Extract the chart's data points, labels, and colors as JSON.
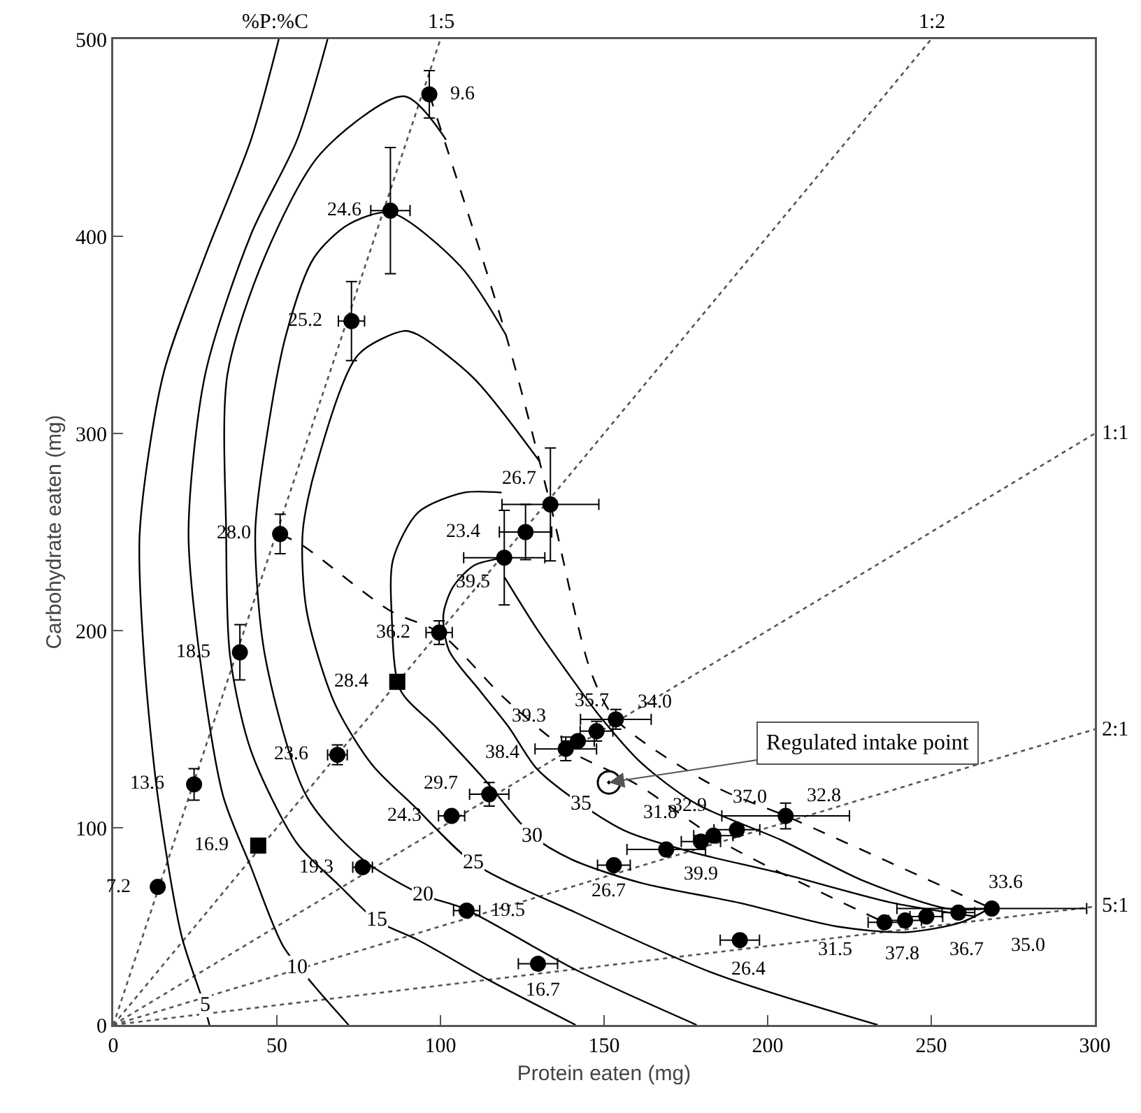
{
  "chart_data": {
    "type": "scatter",
    "xlabel": "Protein eaten (mg)",
    "ylabel": "Carbohydrate eaten (mg)",
    "xlim": [
      0,
      300
    ],
    "xticks": [
      0,
      50,
      100,
      150,
      200,
      250,
      300
    ],
    "ylim": [
      0,
      500
    ],
    "yticks": [
      0,
      100,
      200,
      300,
      400,
      500
    ],
    "annotations": [
      "%P:%C",
      {
        "text": "1:5",
        "x": 100,
        "y": 500
      },
      {
        "text": "1:2",
        "x": 250,
        "y": 500
      },
      {
        "text": "1:1",
        "x": 300,
        "y": 300
      },
      {
        "text": "2:1",
        "x": 300,
        "y": 150
      },
      {
        "text": "5:1",
        "x": 300,
        "y": 60
      },
      {
        "text": "5",
        "x": 28,
        "y": 10
      },
      {
        "text": "10",
        "x": 56,
        "y": 29
      },
      {
        "text": "15",
        "x": 80.4,
        "y": 53
      },
      {
        "text": "20",
        "x": 94.5,
        "y": 66
      },
      {
        "text": "25",
        "x": 110,
        "y": 82
      },
      {
        "text": "30",
        "x": 128,
        "y": 96
      },
      {
        "text": "35",
        "x": 143,
        "y": 112
      },
      {
        "text": "9.6",
        "x": 96.6,
        "y": 472
      },
      {
        "text": "24.6",
        "x": 84.7,
        "y": 413
      },
      {
        "text": "25.2",
        "x": 72.8,
        "y": 357
      },
      {
        "text": "28.0",
        "x": 51,
        "y": 249
      },
      {
        "text": "18.5",
        "x": 38.7,
        "y": 189
      },
      {
        "text": "13.6",
        "x": 24.7,
        "y": 122
      },
      {
        "text": "7.2",
        "x": 13.6,
        "y": 70
      },
      {
        "text": "23.6",
        "x": 68.5,
        "y": 137
      },
      {
        "text": "19.3",
        "x": 76.2,
        "y": 80
      },
      {
        "text": "36.2",
        "x": 99.6,
        "y": 199
      },
      {
        "text": "29.7",
        "x": 114.9,
        "y": 117
      },
      {
        "text": "24.3",
        "x": 103.4,
        "y": 106
      },
      {
        "text": "19.5",
        "x": 108,
        "y": 58
      },
      {
        "text": "16.7",
        "x": 129.8,
        "y": 31
      },
      {
        "text": "26.4",
        "x": 191.5,
        "y": 43
      },
      {
        "text": "26.7",
        "x": 153,
        "y": 81
      },
      {
        "text": "31.8",
        "x": 169,
        "y": 89
      },
      {
        "text": "39.9",
        "x": 179.6,
        "y": 93
      },
      {
        "text": "32.9",
        "x": 183.4,
        "y": 96
      },
      {
        "text": "37.0",
        "x": 190.6,
        "y": 99
      },
      {
        "text": "32.8",
        "x": 205.5,
        "y": 106
      },
      {
        "text": "31.5",
        "x": 235.7,
        "y": 52
      },
      {
        "text": "37.8",
        "x": 242,
        "y": 53
      },
      {
        "text": "36.7",
        "x": 248.5,
        "y": 55
      },
      {
        "text": "35.0",
        "x": 258.3,
        "y": 57
      },
      {
        "text": "33.6",
        "x": 268.5,
        "y": 59
      },
      {
        "text": "34.0",
        "x": 153.6,
        "y": 155
      },
      {
        "text": "35.7",
        "x": 147.7,
        "y": 149
      },
      {
        "text": "39.3",
        "x": 142,
        "y": 144
      },
      {
        "text": "38.4",
        "x": 138.3,
        "y": 140
      },
      {
        "text": "26.7",
        "x": 133.6,
        "y": 264
      },
      {
        "text": "23.4",
        "x": 126,
        "y": 250
      },
      {
        "text": "39.5",
        "x": 119.5,
        "y": 237
      },
      {
        "text": "16.9",
        "x": 44.3,
        "y": 91
      },
      {
        "text": "28.4",
        "x": 86.8,
        "y": 174
      }
    ],
    "series": [
      {
        "type": "line",
        "line_style": "dotted",
        "color": "#555555",
        "x": [
          0,
          100
        ],
        "values": [
          0,
          500
        ]
      },
      {
        "type": "line",
        "line_style": "dotted",
        "color": "#555555",
        "x": [
          0,
          250
        ],
        "values": [
          0,
          500
        ]
      },
      {
        "type": "line",
        "line_style": "dotted",
        "color": "#555555",
        "x": [
          0,
          300
        ],
        "values": [
          0,
          300
        ]
      },
      {
        "type": "line",
        "line_style": "dotted",
        "color": "#555555",
        "x": [
          0,
          300
        ],
        "values": [
          0,
          150
        ]
      },
      {
        "type": "line",
        "line_style": "dotted",
        "color": "#555555",
        "x": [
          0,
          300
        ],
        "values": [
          0,
          60
        ]
      },
      {
        "type": "line",
        "line_style": "solid",
        "color": "#000000",
        "x": [
          50.6,
          42.1,
          28.1,
          15.3,
          8.1,
          9.4,
          13.6,
          20.9,
          27.2,
          29.4
        ],
        "values": [
          500,
          449,
          390,
          330,
          250,
          187,
          116,
          45,
          13,
          0
        ]
      },
      {
        "type": "line",
        "line_style": "solid",
        "color": "#000000",
        "x": [
          65.5,
          56.2,
          42.1,
          28.1,
          23,
          26.4,
          33.6,
          42.1,
          51.9,
          61.3,
          71.9
        ],
        "values": [
          500,
          449,
          401,
          330,
          250,
          187,
          116,
          80,
          40,
          20,
          0
        ]
      },
      {
        "type": "line",
        "line_style": "solid",
        "color": "#000000",
        "x": [
          101.7,
          88.9,
          63.4,
          46.4,
          34.9,
          34.5,
          35.7,
          42.1,
          56.2,
          68.9,
          80.4,
          93.2,
          114.5,
          141.3
        ],
        "values": [
          449,
          471,
          442,
          390,
          330,
          250,
          187,
          139,
          92,
          71,
          53,
          43,
          23,
          0
        ]
      },
      {
        "type": "line",
        "line_style": "solid",
        "color": "#000000",
        "x": [
          120,
          106,
          84.7,
          71.9,
          61.3,
          52.8,
          46.4,
          43.4,
          46.4,
          59.1,
          76.2,
          94.5,
          107.2,
          141.3,
          178.3
        ],
        "values": [
          350,
          385,
          412,
          406,
          389,
          350,
          293,
          250,
          187,
          116,
          84,
          66,
          59,
          28,
          0
        ]
      },
      {
        "type": "line",
        "line_style": "solid",
        "color": "#000000",
        "x": [
          130.2,
          110.2,
          93.2,
          88.9,
          74.9,
          62.1,
          57.9,
          59.1,
          67.7,
          79.1,
          91.9,
          110.2,
          141.3,
          183.8,
          233.6
        ],
        "values": [
          286,
          328,
          350,
          352,
          340,
          284,
          250,
          210,
          163,
          132,
          111,
          82,
          57,
          26,
          0
        ]
      },
      {
        "type": "line",
        "line_style": "solid",
        "color": "#000000",
        "x": [
          118.7,
          107.2,
          93.2,
          85.5,
          85.1,
          87.7,
          98.7,
          113.2,
          128.1,
          140,
          161.3,
          191.1,
          220.9,
          242.1,
          259.1,
          267.7
        ],
        "values": [
          270,
          270,
          260,
          236,
          208,
          170,
          151,
          125,
          96,
          84,
          72,
          62,
          50,
          47,
          52,
          59
        ]
      },
      {
        "type": "line",
        "line_style": "solid",
        "color": "#000000",
        "x": [
          119.6,
          110.2,
          103.8,
          100.9,
          102.6,
          112.3,
          120.9,
          129.4,
          143,
          157,
          178.3,
          203.8,
          237.9,
          263.4
        ],
        "values": [
          237,
          233,
          222,
          208,
          190,
          169,
          151,
          130,
          112,
          98,
          87,
          77,
          62,
          55
        ]
      },
      {
        "type": "line",
        "line_style": "solid",
        "color": "#000000",
        "x": [
          119.6,
          129.4,
          138.7,
          148.5,
          161.3,
          178.3,
          203.8,
          229.4,
          254.9,
          267.7
        ],
        "values": [
          227,
          201,
          179,
          157,
          133,
          112,
          94,
          73,
          59,
          59
        ]
      },
      {
        "type": "line",
        "line_style": "dashed",
        "color": "#000000",
        "x": [
          96.6,
          120,
          133.6,
          146,
          153.6,
          183.8,
          205.5,
          268.5
        ],
        "values": [
          472,
          350,
          264,
          179,
          155,
          121,
          106,
          59
        ]
      },
      {
        "type": "line",
        "line_style": "dashed",
        "color": "#000000",
        "x": [
          51,
          58,
          84.7,
          99.6,
          120,
          138.3,
          160,
          186.8,
          235.7
        ],
        "values": [
          249,
          243,
          210,
          199,
          165,
          140,
          122,
          92,
          52
        ]
      },
      {
        "type": "scatter",
        "marker": "circle",
        "color": "#000000",
        "x": [
          96.6,
          84.7,
          72.8,
          51,
          38.7,
          24.7,
          13.6,
          68.5,
          76.2,
          99.6,
          114.9,
          103.4,
          108,
          129.8,
          191.5,
          153,
          169,
          179.6,
          183.4,
          190.6,
          205.5,
          235.7,
          242,
          248.5,
          258.3,
          268.5,
          153.6,
          147.7,
          142,
          138.3,
          133.6,
          126,
          119.5
        ],
        "values": [
          472,
          413,
          357,
          249,
          189,
          122,
          70,
          137,
          80,
          199,
          117,
          106,
          58,
          31,
          43,
          81,
          89,
          93,
          96,
          99,
          106,
          52,
          53,
          55,
          57,
          59,
          155,
          149,
          144,
          140,
          264,
          250,
          237
        ],
        "errors": [
          12,
          32,
          20,
          10,
          14,
          8,
          null,
          5,
          null,
          6,
          6,
          null,
          null,
          null,
          null,
          null,
          null,
          null,
          null,
          null,
          6.5,
          null,
          null,
          null,
          null,
          null,
          5,
          5,
          null,
          6,
          28.6,
          14,
          24
        ],
        "xerrors": [
          null,
          6,
          4,
          null,
          null,
          null,
          null,
          3,
          3,
          4,
          6,
          4,
          4,
          6,
          6,
          5,
          12,
          6,
          6,
          7,
          19.5,
          5,
          5,
          5,
          5,
          29,
          10.8,
          5,
          5,
          9.4,
          14.8,
          8,
          12.4
        ]
      },
      {
        "type": "scatter",
        "marker": "square",
        "color": "#000000",
        "x": [
          44.3,
          86.8
        ],
        "values": [
          91,
          174
        ]
      },
      {
        "type": "scatter",
        "marker": "circle",
        "color": "#ffffff",
        "name": "Regulated intake point",
        "x": [
          151.5
        ],
        "values": [
          123
        ]
      }
    ]
  }
}
